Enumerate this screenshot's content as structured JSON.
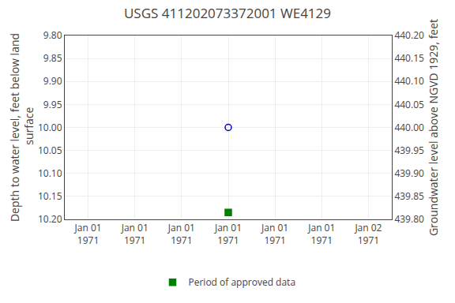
{
  "chart_data": {
    "type": "scatter",
    "title": "USGS 411202073372001 WE4129",
    "ylabel": "Depth to water level, feet below land\n surface",
    "y2label": "Groundwater level above NGVD 1929, feet",
    "categories": [
      "Jan 01\n1971",
      "Jan 01\n1971",
      "Jan 01\n1971",
      "Jan 01\n1971",
      "Jan 01\n1971",
      "Jan 01\n1971",
      "Jan 02\n1971"
    ],
    "series": [
      {
        "marker": "circle-open",
        "color": "#0000cc",
        "values": [
          null,
          null,
          null,
          10.0,
          null,
          null,
          null
        ]
      },
      {
        "name": "Period of approved data",
        "marker": "square",
        "color": "#008000",
        "values": [
          null,
          null,
          null,
          10.185,
          null,
          null,
          null
        ]
      }
    ],
    "ylim": [
      10.2,
      9.8
    ],
    "yticks": [
      {
        "value": 9.8,
        "label": "9.80"
      },
      9.85,
      {
        "value": 9.9,
        "label": "9.90"
      },
      9.95,
      {
        "value": 10.0,
        "label": "10.00"
      },
      10.05,
      {
        "value": 10.1,
        "label": "10.10"
      },
      10.15,
      {
        "value": 10.2,
        "label": "10.20"
      }
    ],
    "y2lim": [
      439.8,
      440.2
    ],
    "y2ticks": [
      {
        "value": 440.2,
        "label": "440.20"
      },
      440.15,
      {
        "value": 440.1,
        "label": "440.10"
      },
      440.05,
      {
        "value": 440.0,
        "label": "440.00"
      },
      439.95,
      {
        "value": 439.9,
        "label": "439.90"
      },
      439.85,
      {
        "value": 439.8,
        "label": "439.80"
      }
    ],
    "grid": true,
    "legend": "bottom"
  }
}
